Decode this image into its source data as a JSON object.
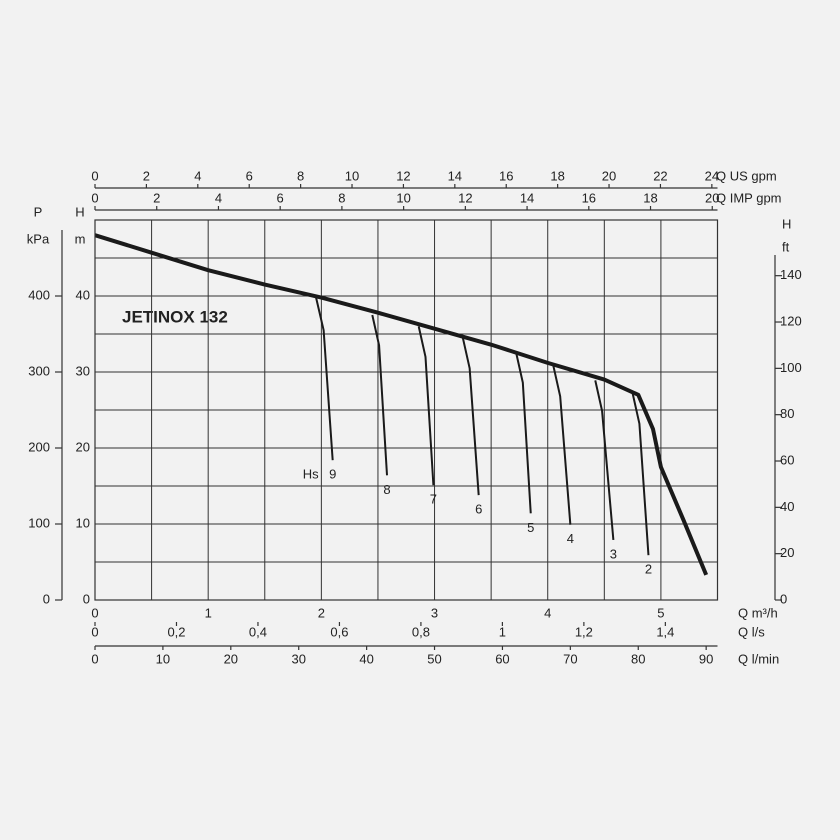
{
  "chart_data": {
    "type": "line",
    "title": "JETINOX 132",
    "annotation": "Hs",
    "xlabel": "Q m³/h",
    "xlim": [
      0,
      5.5
    ],
    "xticks": [
      0,
      1,
      2,
      3,
      4,
      5
    ],
    "xgrid": [
      0,
      0.5,
      1,
      1.5,
      2,
      2.5,
      3,
      3.5,
      4,
      4.5,
      5,
      5.5
    ],
    "ylabel": [
      "H",
      "m"
    ],
    "ylim": [
      0,
      50
    ],
    "yticks": [
      0,
      10,
      20,
      30,
      40
    ],
    "ygrid": [
      0,
      5,
      10,
      15,
      20,
      25,
      30,
      35,
      40,
      45,
      50
    ],
    "y2label": [
      "H",
      "ft"
    ],
    "y2lim": [
      0,
      164.04
    ],
    "y2ticks": [
      0,
      20,
      40,
      60,
      80,
      100,
      120,
      140
    ],
    "pressure_axis": {
      "label": [
        "P",
        "kPa"
      ],
      "lim": [
        0,
        500
      ],
      "ticks": [
        0,
        100,
        200,
        300,
        400
      ]
    },
    "x_top_axes": [
      {
        "label": "Q US gpm",
        "lim": [
          0,
          24.22
        ],
        "ticks": [
          0,
          2,
          4,
          6,
          8,
          10,
          12,
          14,
          16,
          18,
          20,
          22,
          24
        ]
      },
      {
        "label": "Q IMP gpm",
        "lim": [
          0,
          20.17
        ],
        "ticks": [
          0,
          2,
          4,
          6,
          8,
          10,
          12,
          14,
          16,
          18,
          20
        ]
      }
    ],
    "x_bottom_axes": [
      {
        "label": "Q l/s",
        "lim": [
          0,
          1.528
        ],
        "ticks": [
          0,
          {
            "value": 0.2,
            "label": "0,2"
          },
          {
            "value": 0.4,
            "label": "0,4"
          },
          {
            "value": 0.6,
            "label": "0,6"
          },
          {
            "value": 0.8,
            "label": "0,8"
          },
          1,
          {
            "value": 1.2,
            "label": "1,2"
          },
          {
            "value": 1.4,
            "label": "1,4"
          }
        ]
      },
      {
        "label": "Q l/min",
        "lim": [
          0,
          91.67
        ],
        "ticks": [
          0,
          10,
          20,
          30,
          40,
          50,
          60,
          70,
          80,
          90
        ]
      }
    ],
    "series": [
      {
        "color": "#1a1a1a",
        "x": [
          0,
          0.5,
          1,
          1.5,
          2,
          2.5,
          3,
          3.5,
          4,
          4.5,
          4.8,
          4.93,
          5.0,
          5.2,
          5.4
        ],
        "values": [
          48,
          45.7,
          43.4,
          41.5,
          39.8,
          37.8,
          35.7,
          33.6,
          31.2,
          29.0,
          27.0,
          22.5,
          17.5,
          10.5,
          3.3
        ]
      },
      {
        "name": "9",
        "color": "#1a1a1a",
        "x": [
          1.95,
          2.02,
          2.1
        ],
        "values": [
          40,
          35.5,
          18.4
        ]
      },
      {
        "name": "8",
        "color": "#1a1a1a",
        "x": [
          2.45,
          2.51,
          2.58
        ],
        "values": [
          37.5,
          33.5,
          16.4
        ]
      },
      {
        "name": "7",
        "color": "#1a1a1a",
        "x": [
          2.86,
          2.92,
          2.99
        ],
        "values": [
          36,
          32,
          15.1
        ]
      },
      {
        "name": "6",
        "color": "#1a1a1a",
        "x": [
          3.25,
          3.31,
          3.39
        ],
        "values": [
          34.5,
          30.5,
          13.8
        ]
      },
      {
        "name": "5",
        "color": "#1a1a1a",
        "x": [
          3.72,
          3.78,
          3.85
        ],
        "values": [
          32.6,
          28.6,
          11.4
        ]
      },
      {
        "name": "4",
        "color": "#1a1a1a",
        "x": [
          4.05,
          4.11,
          4.2
        ],
        "values": [
          30.8,
          26.8,
          9.9
        ]
      },
      {
        "name": "3",
        "color": "#1a1a1a",
        "x": [
          4.42,
          4.48,
          4.58
        ],
        "values": [
          28.9,
          24.9,
          7.9
        ]
      },
      {
        "name": "2",
        "color": "#1a1a1a",
        "x": [
          4.75,
          4.81,
          4.89
        ],
        "values": [
          27.2,
          23.2,
          5.9
        ]
      }
    ]
  }
}
